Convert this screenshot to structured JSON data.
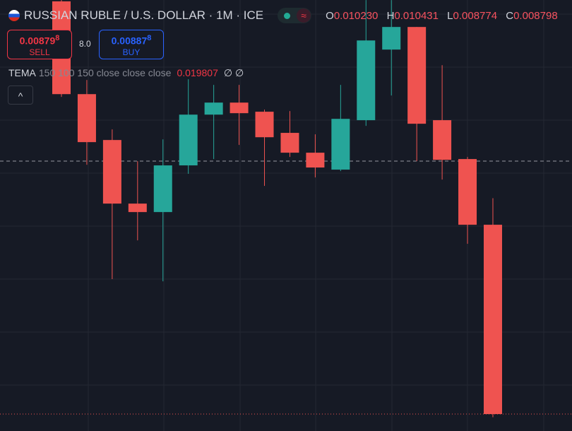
{
  "header": {
    "symbol": "RUSSIAN RUBLE / U.S. DOLLAR · 1M · ICE",
    "ohlc": [
      {
        "label": "O",
        "value": "0.010230"
      },
      {
        "label": "H",
        "value": "0.010431"
      },
      {
        "label": "L",
        "value": "0.008774"
      },
      {
        "label": "C",
        "value": "0.008798"
      }
    ],
    "sell": {
      "price": "0.00879",
      "pip": "8",
      "label": "SELL"
    },
    "spread": "8.0",
    "buy": {
      "price": "0.00887",
      "pip": "8",
      "label": "BUY"
    },
    "indicator": {
      "name": "TEMA",
      "params": "150 100 150 close close close",
      "value": "0.019807",
      "extra": "∅ ∅"
    },
    "collapse": "^"
  },
  "chart_data": {
    "type": "candlestick",
    "title": "RUSSIAN RUBLE / U.S. DOLLAR · 1M · ICE",
    "ylim": [
      0.00867,
      0.01193
    ],
    "open": [
      0.01192,
      0.011218,
      0.010871,
      0.01039,
      0.010326,
      0.010679,
      0.011063,
      0.011154,
      0.011085,
      0.010925,
      0.010775,
      0.010647,
      0.011021,
      0.011555,
      0.011726,
      0.011021,
      0.010727,
      0.01023
    ],
    "high": [
      0.01193,
      0.011325,
      0.010951,
      0.010711,
      0.010876,
      0.011331,
      0.011288,
      0.011288,
      0.011101,
      0.01109,
      0.010914,
      0.011288,
      0.011929,
      0.011929,
      0.011726,
      0.011437,
      0.010743,
      0.010431
    ],
    "low": [
      0.011197,
      0.010684,
      0.009819,
      0.010112,
      0.009802,
      0.010615,
      0.010727,
      0.010834,
      0.010524,
      0.010743,
      0.010588,
      0.010636,
      0.010978,
      0.011208,
      0.010711,
      0.010572,
      0.010086,
      0.008774
    ],
    "close": [
      0.011218,
      0.010855,
      0.01039,
      0.010326,
      0.010679,
      0.011063,
      0.011154,
      0.011074,
      0.010892,
      0.010775,
      0.010663,
      0.011031,
      0.011624,
      0.011726,
      0.010994,
      0.010721,
      0.01023,
      0.008798
    ],
    "colors": {
      "up": "#26a69a",
      "down": "#ef5350"
    }
  }
}
